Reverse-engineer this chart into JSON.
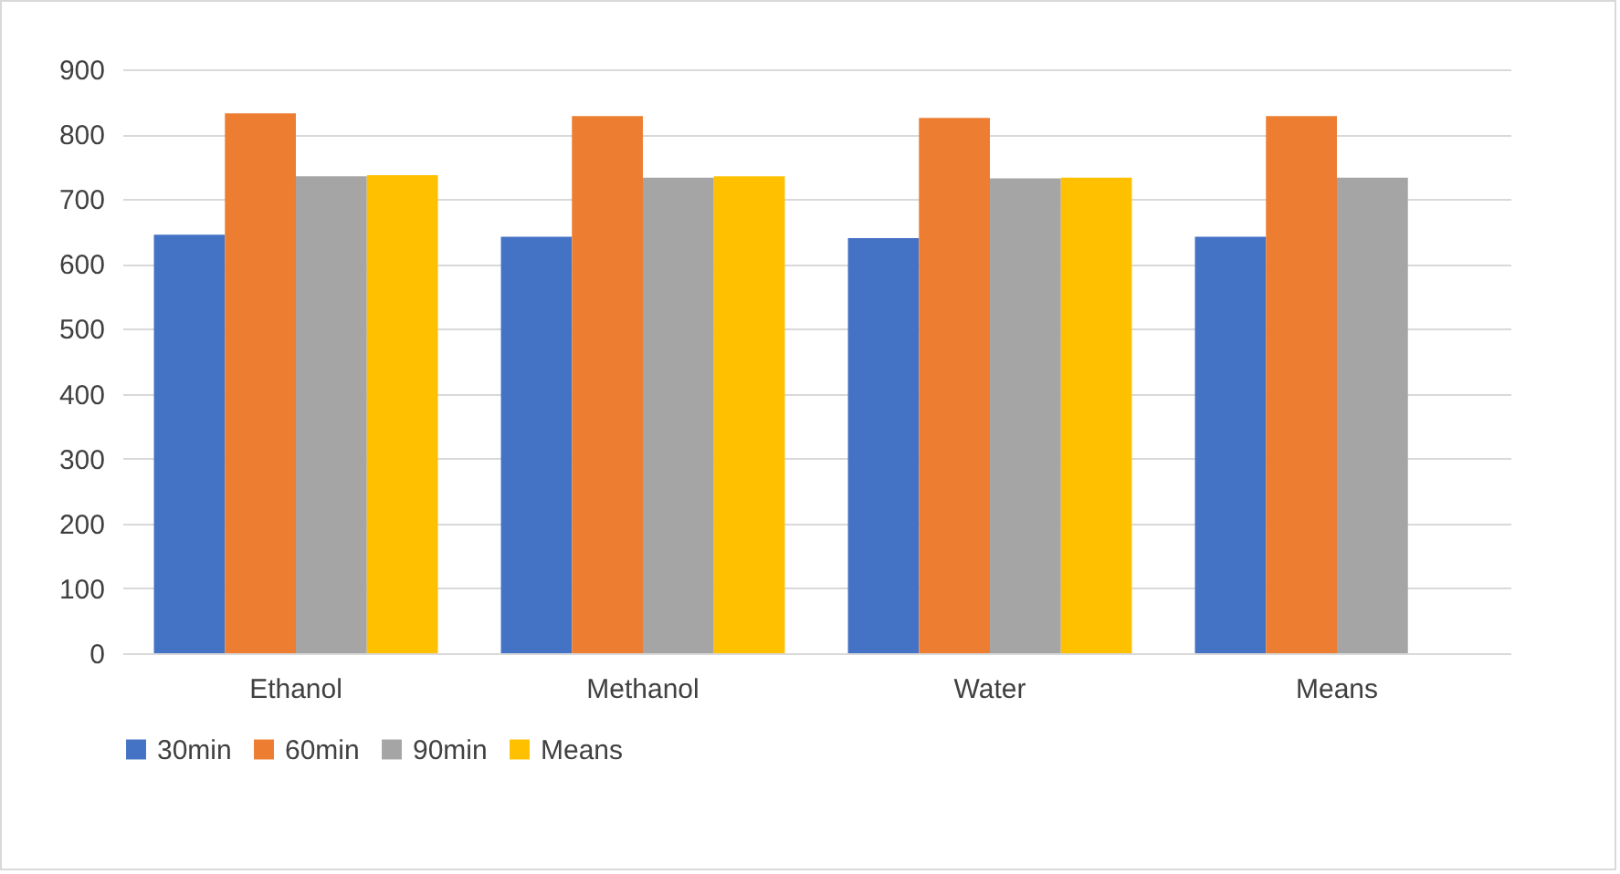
{
  "chart_data": {
    "type": "bar",
    "categories": [
      "Ethanol",
      "Methanol",
      "Water",
      "Means"
    ],
    "series": [
      {
        "name": "30min",
        "color": "#4472c4",
        "values": [
          645,
          642,
          640,
          642
        ]
      },
      {
        "name": "60min",
        "color": "#ed7d31",
        "values": [
          832,
          828,
          825,
          828
        ]
      },
      {
        "name": "90min",
        "color": "#a5a5a5",
        "values": [
          735,
          733,
          732,
          733
        ]
      },
      {
        "name": "Means",
        "color": "#ffc000",
        "values": [
          737,
          735,
          733,
          null
        ]
      }
    ],
    "ylim": [
      0,
      900
    ],
    "yticks": [
      0,
      100,
      200,
      300,
      400,
      500,
      600,
      700,
      800,
      900
    ],
    "grid": "y",
    "legend": "bottom"
  }
}
